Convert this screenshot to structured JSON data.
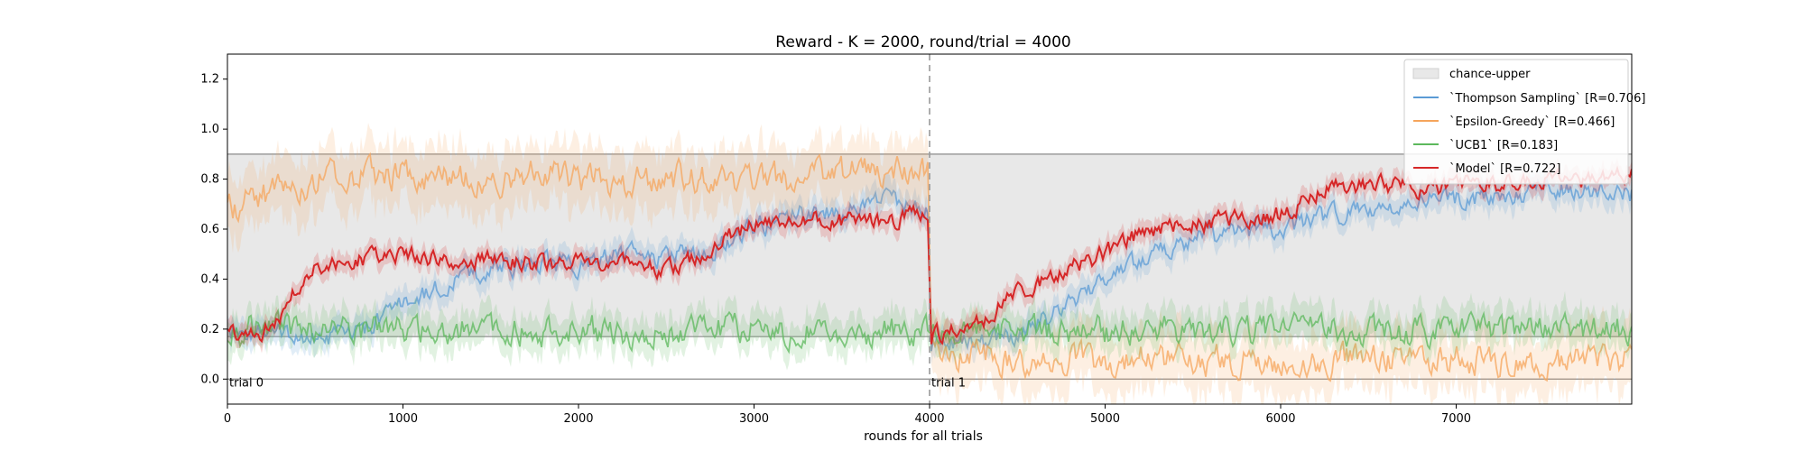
{
  "chart_data": {
    "type": "line",
    "title": "Reward - K = 2000, round/trial = 4000",
    "xlabel": "rounds for all trials",
    "ylabel": "",
    "xlim": [
      0,
      8000
    ],
    "ylim": [
      -0.1,
      1.3
    ],
    "x_ticks": [
      0,
      1000,
      2000,
      3000,
      4000,
      5000,
      6000,
      7000
    ],
    "x_tick_labels": [
      "0",
      "1000",
      "2000",
      "3000",
      "4000",
      "5000",
      "6000",
      "7000"
    ],
    "y_ticks": [
      0.0,
      0.2,
      0.4,
      0.6,
      0.8,
      1.0,
      1.2
    ],
    "y_tick_labels": [
      "0.0",
      "0.2",
      "0.4",
      "0.6",
      "0.8",
      "1.0",
      "1.2"
    ],
    "grid": false,
    "legend_position": "top-right",
    "trial_divider_x": 4000,
    "annotations": [
      {
        "text": "trial 0",
        "x": 0,
        "y": 0.0
      },
      {
        "text": "trial 1",
        "x": 4000,
        "y": 0.0
      }
    ],
    "chance_band": {
      "name": "chance-upper",
      "lower": 0.17,
      "upper": 0.9,
      "color": "#e8e8e8",
      "reference_lines": [
        0.0,
        0.17,
        0.9
      ]
    },
    "x": [
      0,
      250,
      500,
      750,
      1000,
      1250,
      1500,
      1750,
      2000,
      2250,
      2500,
      2750,
      3000,
      3250,
      3500,
      3750,
      3990,
      4010,
      4250,
      4500,
      4750,
      5000,
      5250,
      5500,
      5750,
      6000,
      6250,
      6500,
      6750,
      7000,
      7250,
      7500,
      7750,
      8000
    ],
    "series": [
      {
        "name": "`Thompson Sampling` [R=0.706]",
        "color": "#5b9bd5",
        "values": [
          0.2,
          0.18,
          0.16,
          0.18,
          0.3,
          0.38,
          0.44,
          0.46,
          0.46,
          0.5,
          0.48,
          0.52,
          0.6,
          0.66,
          0.68,
          0.72,
          0.7,
          0.15,
          0.14,
          0.18,
          0.28,
          0.4,
          0.5,
          0.56,
          0.58,
          0.6,
          0.64,
          0.68,
          0.7,
          0.72,
          0.74,
          0.76,
          0.76,
          0.74
        ]
      },
      {
        "name": "`Epsilon-Greedy` [R=0.466]",
        "color": "#f5a55c",
        "values": [
          0.68,
          0.74,
          0.8,
          0.82,
          0.81,
          0.8,
          0.79,
          0.82,
          0.8,
          0.79,
          0.8,
          0.8,
          0.79,
          0.8,
          0.82,
          0.83,
          0.84,
          0.08,
          0.1,
          0.08,
          0.08,
          0.07,
          0.08,
          0.07,
          0.08,
          0.07,
          0.08,
          0.07,
          0.08,
          0.08,
          0.07,
          0.08,
          0.07,
          0.07
        ]
      },
      {
        "name": "`UCB1` [R=0.183]",
        "color": "#5cb85c",
        "values": [
          0.2,
          0.2,
          0.19,
          0.2,
          0.19,
          0.2,
          0.2,
          0.19,
          0.2,
          0.19,
          0.2,
          0.19,
          0.2,
          0.19,
          0.2,
          0.19,
          0.2,
          0.18,
          0.19,
          0.18,
          0.2,
          0.19,
          0.2,
          0.19,
          0.2,
          0.19,
          0.2,
          0.2,
          0.19,
          0.2,
          0.19,
          0.2,
          0.19,
          0.2
        ]
      },
      {
        "name": "`Model` [R=0.722]",
        "color": "#d62728",
        "values": [
          0.18,
          0.2,
          0.46,
          0.48,
          0.5,
          0.47,
          0.48,
          0.46,
          0.47,
          0.47,
          0.44,
          0.52,
          0.62,
          0.64,
          0.63,
          0.64,
          0.65,
          0.18,
          0.2,
          0.35,
          0.43,
          0.5,
          0.6,
          0.62,
          0.64,
          0.66,
          0.76,
          0.78,
          0.76,
          0.77,
          0.78,
          0.8,
          0.79,
          0.82
        ]
      }
    ]
  }
}
